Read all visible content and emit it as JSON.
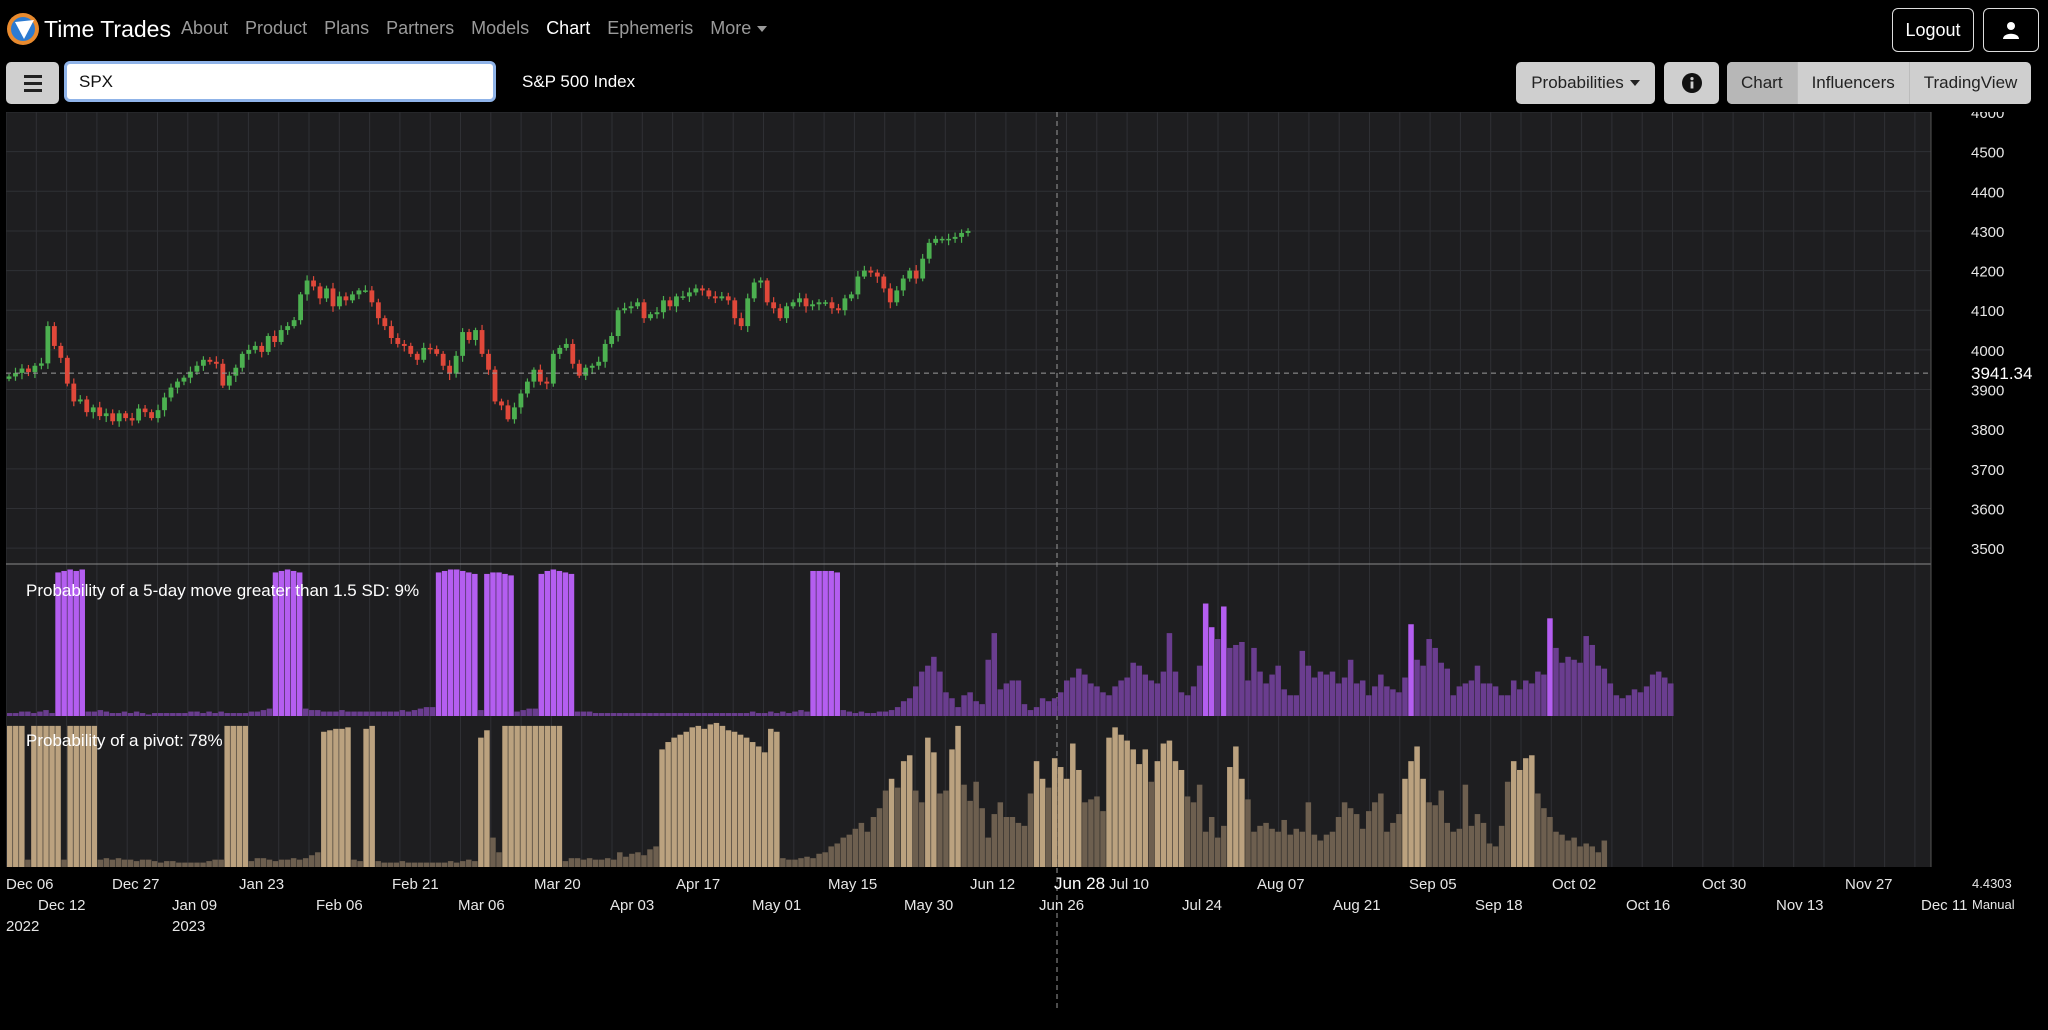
{
  "brand": {
    "title": "Time Trades"
  },
  "nav": {
    "items": [
      "About",
      "Product",
      "Plans",
      "Partners",
      "Models",
      "Chart",
      "Ephemeris",
      "More"
    ]
  },
  "header": {
    "logout_label": "Logout"
  },
  "toolbar": {
    "search_value": "SPX",
    "symbol_name": "S&P 500 Index",
    "probabilities_label": "Probabilities",
    "views": [
      "Chart",
      "Influencers",
      "TradingView"
    ],
    "active_view": "Chart"
  },
  "colors": {
    "up": "#4cb050",
    "down": "#e0483a",
    "purple_hi": "#b45ef0",
    "purple_lo": "#6a3d8f",
    "tan_hi": "#bba27f",
    "tan_lo": "#6d5f4f"
  },
  "chart_data": [
    {
      "type": "candlestick",
      "title": "",
      "y_ticks": [
        3500,
        3600,
        3700,
        3800,
        3900,
        4000,
        4100,
        4200,
        4300,
        4400,
        4500,
        4600
      ],
      "ylim": [
        3460,
        4600
      ],
      "last_price_label": "3941.34",
      "crosshair_label": "Jun 28",
      "grid": true,
      "closes": [
        3933,
        3942,
        3953,
        3944,
        3960,
        3966,
        4060,
        4010,
        3980,
        3915,
        3870,
        3875,
        3843,
        3855,
        3833,
        3840,
        3820,
        3840,
        3828,
        3822,
        3852,
        3843,
        3828,
        3848,
        3880,
        3905,
        3920,
        3930,
        3945,
        3960,
        3975,
        3970,
        3965,
        3910,
        3935,
        3955,
        3990,
        4000,
        4010,
        3995,
        4035,
        4020,
        4050,
        4060,
        4075,
        4140,
        4175,
        4160,
        4130,
        4155,
        4110,
        4135,
        4125,
        4140,
        4150,
        4150,
        4120,
        4080,
        4060,
        4030,
        4015,
        4010,
        3990,
        3975,
        4005,
        4002,
        3990,
        3960,
        3940,
        3985,
        4045,
        4025,
        4050,
        3990,
        3950,
        3870,
        3860,
        3825,
        3855,
        3890,
        3920,
        3950,
        3920,
        3915,
        3990,
        4005,
        4015,
        3965,
        3935,
        3955,
        3960,
        3970,
        4015,
        4035,
        4100,
        4105,
        4110,
        4120,
        4080,
        4090,
        4095,
        4125,
        4110,
        4135,
        4135,
        4145,
        4155,
        4150,
        4135,
        4130,
        4135,
        4125,
        4080,
        4060,
        4130,
        4170,
        4175,
        4120,
        4105,
        4080,
        4110,
        4120,
        4130,
        4110,
        4115,
        4120,
        4120,
        4105,
        4100,
        4130,
        4140,
        4185,
        4200,
        4195,
        4185,
        4155,
        4120,
        4150,
        4180,
        4200,
        4180,
        4230,
        4270,
        4280,
        4280,
        4280,
        4285,
        4295,
        4300
      ],
      "x_ticks_row1": [
        "Dec 06",
        "Dec 27",
        "Jan 23",
        "Feb 21",
        "Mar 20",
        "Apr 17",
        "May 15",
        "Jun 12",
        "Jul 10",
        "Aug 07",
        "Sep 05",
        "Oct 02",
        "Oct 30",
        "Nov 27"
      ],
      "x_ticks_row2": [
        "Dec 12",
        "Jan 09",
        "Feb 06",
        "Mar 06",
        "Apr 03",
        "May 01",
        "May 30",
        "Jun 26",
        "Jul 24",
        "Aug 21",
        "Sep 18",
        "Oct 16",
        "Nov 13",
        "Dec 11"
      ],
      "year_labels": [
        "2022",
        "2023"
      ],
      "corner_value": "4.4303",
      "corner_mode": "Manual"
    },
    {
      "type": "bar",
      "title": "Probability of a 5-day move greater than 1.5 SD: 9%",
      "values": [
        2,
        2,
        3,
        3,
        2,
        3,
        4,
        2,
        97,
        98,
        99,
        98,
        99,
        3,
        3,
        4,
        3,
        2,
        2,
        3,
        2,
        3,
        2,
        1,
        2,
        2,
        2,
        2,
        2,
        2,
        3,
        3,
        2,
        3,
        2,
        3,
        2,
        2,
        2,
        2,
        3,
        3,
        4,
        5,
        97,
        98,
        99,
        98,
        97,
        5,
        4,
        4,
        3,
        3,
        3,
        4,
        3,
        3,
        3,
        3,
        3,
        3,
        3,
        3,
        3,
        4,
        3,
        4,
        5,
        6,
        6,
        97,
        98,
        99,
        99,
        98,
        97,
        96,
        4,
        96,
        97,
        97,
        96,
        95,
        3,
        4,
        5,
        5,
        96,
        98,
        99,
        98,
        97,
        96,
        3,
        3,
        3,
        2,
        2,
        2,
        2,
        2,
        2,
        2,
        2,
        2,
        2,
        2,
        2,
        2,
        2,
        2,
        2,
        2,
        2,
        2,
        2,
        2,
        2,
        2,
        2,
        2,
        2,
        3,
        2,
        2,
        3,
        2,
        3,
        2,
        3,
        4,
        3,
        98,
        98,
        98,
        98,
        97,
        4,
        3,
        2,
        3,
        2,
        2,
        3,
        3,
        4,
        6,
        10,
        12,
        20,
        30,
        34,
        40,
        30,
        16,
        12,
        6,
        14,
        16,
        10,
        8,
        38,
        56,
        18,
        22,
        24,
        24,
        8,
        4,
        6,
        12,
        10,
        12,
        16,
        24,
        26,
        32,
        28,
        22,
        20,
        16,
        14,
        20,
        24,
        26,
        36,
        34,
        28,
        24,
        22,
        30,
        56,
        30,
        16,
        14,
        20,
        34,
        76,
        60,
        52,
        74,
        46,
        48,
        50,
        24,
        46,
        30,
        22,
        28,
        34,
        18,
        14,
        14,
        44,
        34,
        26,
        30,
        28,
        30,
        22,
        26,
        38,
        22,
        24,
        14,
        20,
        28,
        20,
        18,
        16,
        26,
        62,
        38,
        34,
        52,
        46,
        36,
        32,
        14,
        20,
        22,
        24,
        34,
        22,
        22,
        20,
        14,
        14,
        24,
        18,
        24,
        22,
        30,
        28,
        66,
        46,
        36,
        40,
        38,
        36,
        54,
        48,
        34,
        32,
        22,
        14,
        12,
        14,
        18,
        16,
        20,
        28,
        30,
        26,
        22
      ],
      "ylim": [
        0,
        100
      ]
    },
    {
      "type": "bar",
      "title": "Probability of a pivot: 78%",
      "values": [
        96,
        96,
        96,
        5,
        96,
        96,
        96,
        96,
        96,
        5,
        96,
        96,
        96,
        96,
        96,
        5,
        6,
        5,
        6,
        5,
        5,
        4,
        5,
        5,
        4,
        3,
        4,
        4,
        3,
        3,
        3,
        3,
        3,
        4,
        5,
        5,
        96,
        96,
        96,
        96,
        4,
        6,
        6,
        5,
        4,
        5,
        5,
        6,
        5,
        6,
        8,
        10,
        92,
        93,
        94,
        94,
        95,
        5,
        4,
        94,
        96,
        4,
        3,
        3,
        3,
        4,
        3,
        3,
        3,
        3,
        3,
        3,
        3,
        4,
        3,
        4,
        5,
        4,
        88,
        93,
        20,
        10,
        96,
        96,
        96,
        96,
        96,
        96,
        96,
        96,
        96,
        96,
        4,
        6,
        6,
        5,
        6,
        5,
        5,
        6,
        5,
        10,
        7,
        9,
        10,
        8,
        12,
        14,
        80,
        85,
        88,
        90,
        92,
        95,
        96,
        94,
        97,
        98,
        96,
        93,
        92,
        90,
        88,
        85,
        82,
        78,
        94,
        92,
        6,
        5,
        5,
        6,
        7,
        6,
        9,
        10,
        14,
        16,
        20,
        22,
        26,
        30,
        24,
        34,
        40,
        52,
        60,
        54,
        72,
        76,
        52,
        44,
        88,
        78,
        50,
        52,
        80,
        96,
        56,
        45,
        58,
        40,
        20,
        36,
        44,
        34,
        34,
        30,
        28,
        50,
        72,
        60,
        54,
        74,
        68,
        60,
        84,
        66,
        44,
        46,
        48,
        38,
        88,
        95,
        90,
        86,
        80,
        70,
        80,
        58,
        72,
        84,
        86,
        72,
        66,
        48,
        44,
        56,
        24,
        34,
        20,
        28,
        68,
        82,
        60,
        46,
        24,
        28,
        30,
        26,
        24,
        32,
        22,
        26,
        24,
        44,
        22,
        18,
        22,
        24,
        34,
        44,
        40,
        36,
        26,
        38,
        44,
        50,
        24,
        30,
        36,
        60,
        72,
        82,
        60,
        44,
        42,
        52,
        30,
        24,
        26,
        56,
        28,
        36,
        30,
        16,
        14,
        28,
        58,
        72,
        66,
        74,
        76,
        50,
        40,
        34,
        24,
        22,
        18,
        20,
        14,
        16,
        14,
        10,
        18
      ]
    }
  ]
}
